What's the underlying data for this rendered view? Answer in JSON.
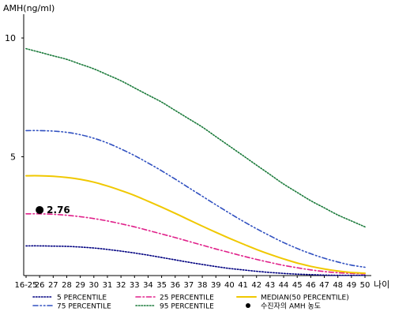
{
  "chart_data": {
    "type": "line",
    "ylabel": "AMH(ng/ml)",
    "xlabel": "나이",
    "ylim": [
      0,
      11
    ],
    "yticks": [
      5,
      10
    ],
    "ytick_labels": [
      "5",
      "10"
    ],
    "categories": [
      "16-25",
      "26",
      "27",
      "28",
      "29",
      "30",
      "31",
      "32",
      "33",
      "34",
      "35",
      "36",
      "37",
      "38",
      "39",
      "40",
      "41",
      "42",
      "43",
      "44",
      "45",
      "46",
      "47",
      "48",
      "49",
      "50"
    ],
    "grid": false,
    "legend_position": "bottom",
    "series": [
      {
        "name": "5 PERCENTILE",
        "color": "#000080",
        "style": "dotted",
        "values": [
          1.25,
          1.25,
          1.24,
          1.23,
          1.2,
          1.16,
          1.1,
          1.03,
          0.95,
          0.86,
          0.76,
          0.66,
          0.56,
          0.47,
          0.38,
          0.3,
          0.24,
          0.18,
          0.13,
          0.09,
          0.06,
          0.04,
          0.02,
          0.01,
          0.01,
          0.01
        ]
      },
      {
        "name": "25 PERCENTILE",
        "color": "#e0208a",
        "style": "dashdot",
        "values": [
          2.6,
          2.6,
          2.58,
          2.54,
          2.48,
          2.4,
          2.3,
          2.18,
          2.05,
          1.9,
          1.75,
          1.6,
          1.44,
          1.28,
          1.12,
          0.97,
          0.82,
          0.68,
          0.55,
          0.43,
          0.33,
          0.24,
          0.17,
          0.12,
          0.09,
          0.07
        ]
      },
      {
        "name": "MEDIAN(50 PERCENTILE)",
        "color": "#f0c800",
        "style": "solid",
        "values": [
          4.2,
          4.2,
          4.18,
          4.13,
          4.05,
          3.93,
          3.77,
          3.58,
          3.37,
          3.13,
          2.88,
          2.62,
          2.35,
          2.08,
          1.82,
          1.57,
          1.33,
          1.1,
          0.89,
          0.7,
          0.53,
          0.39,
          0.28,
          0.19,
          0.13,
          0.1
        ]
      },
      {
        "name": "75 PERCENTILE",
        "color": "#3050c0",
        "style": "dashdotdot",
        "values": [
          6.1,
          6.1,
          6.08,
          6.03,
          5.93,
          5.78,
          5.58,
          5.33,
          5.05,
          4.74,
          4.41,
          4.06,
          3.7,
          3.34,
          2.98,
          2.63,
          2.29,
          1.97,
          1.67,
          1.39,
          1.14,
          0.92,
          0.73,
          0.57,
          0.44,
          0.35
        ]
      },
      {
        "name": "95 PERCENTILE",
        "color": "#1a7a3a",
        "style": "dotted",
        "values": [
          9.55,
          9.4,
          9.25,
          9.1,
          8.9,
          8.7,
          8.45,
          8.2,
          7.9,
          7.6,
          7.3,
          6.95,
          6.6,
          6.25,
          5.85,
          5.45,
          5.05,
          4.65,
          4.25,
          3.85,
          3.5,
          3.15,
          2.85,
          2.55,
          2.3,
          2.05
        ]
      }
    ],
    "marker": {
      "name": "수진자의 AMH 농도",
      "x": "26",
      "y": 2.76,
      "label": "2.76",
      "color": "#000000"
    }
  }
}
